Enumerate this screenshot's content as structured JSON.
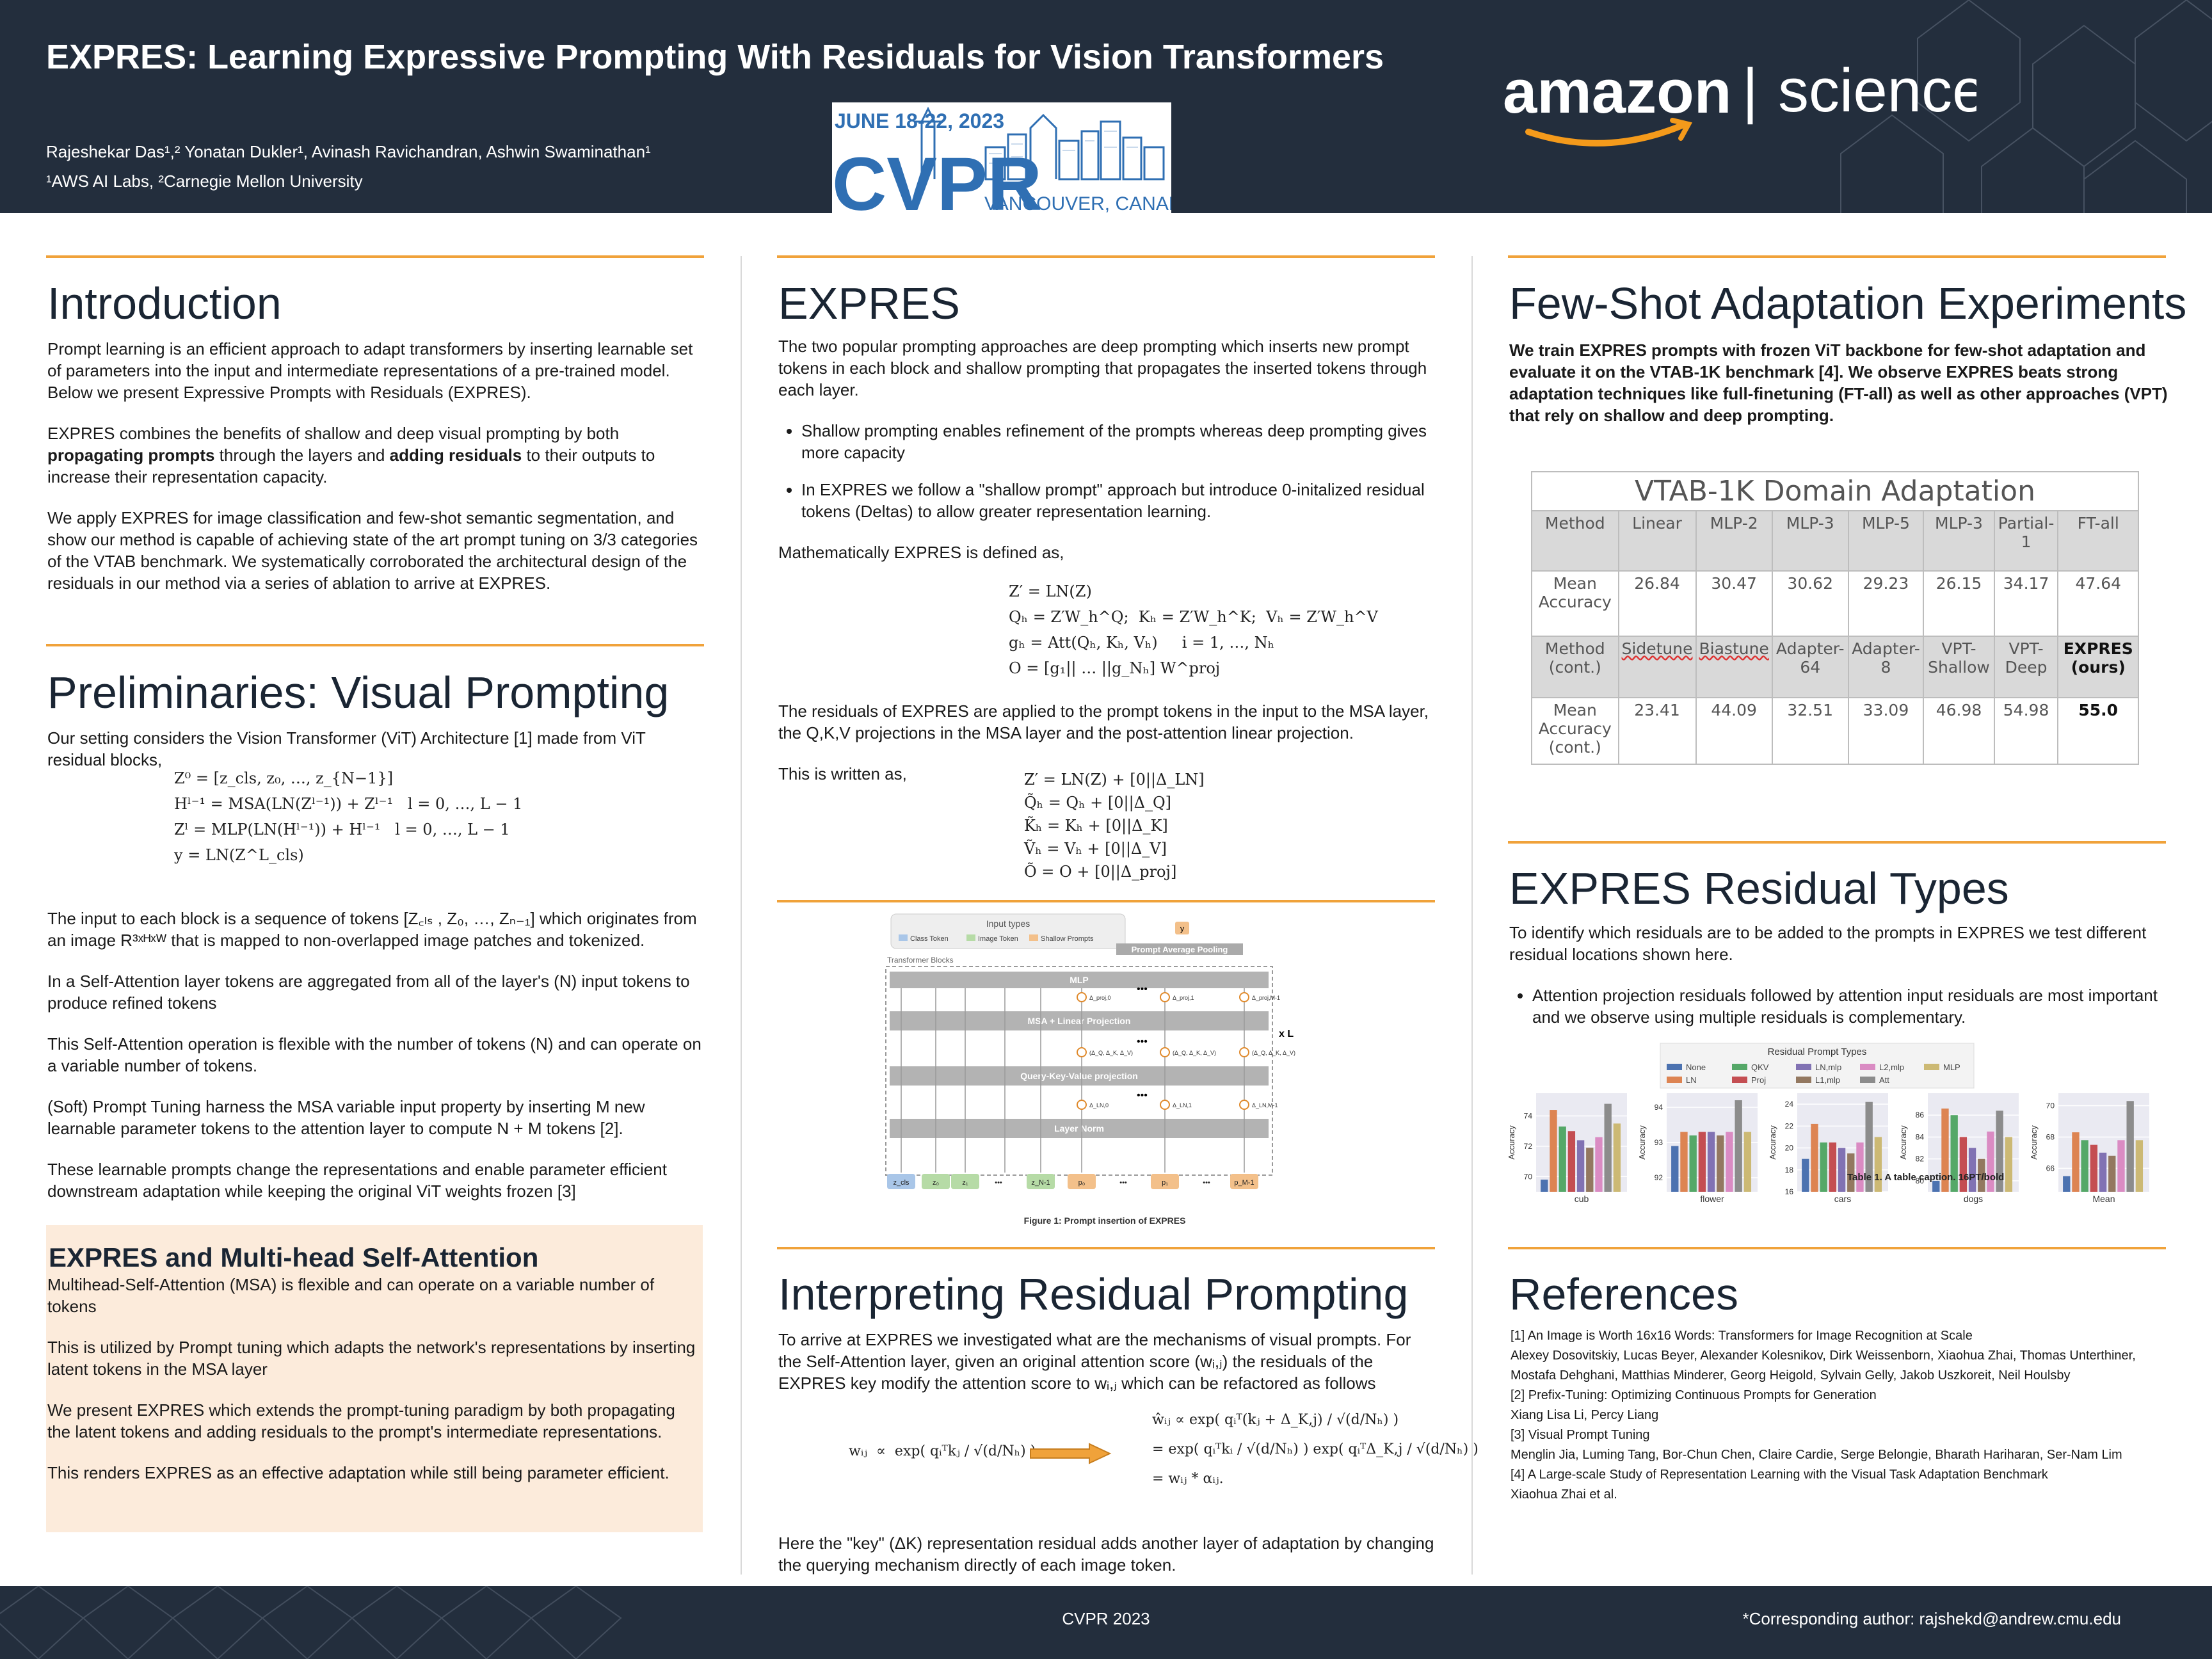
{
  "header": {
    "title": "EXPRES: Learning Expressive Prompting With Residuals for Vision Transformers",
    "authors": "Rajeshekar Das¹,² Yonatan Dukler¹, Avinash Ravichandran, Ashwin Swaminathan¹",
    "affiliations": "¹AWS AI Labs, ²Carnegie Mellon University",
    "cvpr_logo": {
      "dates": "JUNE 18-22, 2023",
      "name": "CVPR",
      "location": "VANCOUVER, CANADA",
      "color": "#2f6fb3"
    },
    "amazon_logo": {
      "brand": "amazon",
      "divider": "|",
      "product": "science",
      "smile_color": "#f49a1b"
    }
  },
  "colors": {
    "header_bg": "#232e3d",
    "accent_orange": "#f0a23a",
    "box_bg": "#fcebdb"
  },
  "intro": {
    "heading": "Introduction",
    "p1": "Prompt learning is an efficient approach to adapt transformers by inserting learnable set of parameters into the input and intermediate representations of a pre-trained model. Below we present Expressive Prompts with Residuals (EXPRES).",
    "p2_a": "EXPRES combines the benefits of shallow and deep visual prompting by both ",
    "p2_b": "propagating prompts",
    "p2_c": " through the layers and ",
    "p2_d": "adding residuals",
    "p2_e": " to their outputs to increase their representation capacity.",
    "p3": "We apply EXPRES for image classification and few-shot semantic segmentation, and show our method is capable of achieving state of the art prompt tuning on 3/3 categories of the VTAB benchmark. We systematically corroborated the architectural design of the residuals in our method via a series of ablation to arrive at EXPRES."
  },
  "prelim": {
    "heading": "Preliminaries: Visual Prompting",
    "p1": "Our setting considers the Vision Transformer (ViT) Architecture [1] made from ViT residual blocks,",
    "equations": [
      "Z⁰ = [z_cls, z₀, …, z_{N−1}]",
      "Hˡ⁻¹ = MSA(LN(Zˡ⁻¹)) + Zˡ⁻¹   l = 0, …, L − 1",
      "Zˡ = MLP(LN(Hˡ⁻¹)) + Hˡ⁻¹   l = 0, …, L − 1",
      "y = LN(Z^L_cls)"
    ],
    "p2": "The input to each block is a sequence of tokens [Z꜀ₗₛ , Z₀, …, Zₙ₋₁] which originates from an image R³ˣᴴˣᵂ that is mapped to non-overlapped image patches and tokenized.",
    "p3": "In a Self-Attention layer tokens are aggregated from all of the layer's (N) input tokens to produce refined tokens",
    "p4": "This Self-Attention operation is flexible with the number of tokens (N) and can operate on a variable number of tokens.",
    "p5": "(Soft) Prompt Tuning harness the MSA variable input property by inserting M new learnable parameter tokens to the attention layer to compute N + M tokens [2].",
    "p6": "These learnable prompts change the representations and enable parameter efficient downstream adaptation while keeping the original ViT weights frozen [3]"
  },
  "msa_box": {
    "heading": "EXPRES and Multi-head Self-Attention",
    "p1": "Multihead-Self-Attention (MSA) is flexible and can operate on a variable number of tokens",
    "p2": "This is utilized by Prompt tuning which adapts the network's representations by inserting latent tokens in the MSA layer",
    "p3": "We present EXPRES which extends the prompt-tuning paradigm by both propagating the latent tokens and adding residuals to the prompt's intermediate representations.",
    "p4": "This renders EXPRES as an effective adaptation while still being parameter efficient."
  },
  "expres": {
    "heading": "EXPRES",
    "p1": "The two popular prompting approaches are deep prompting which inserts new prompt tokens in each block and shallow prompting that propagates the inserted tokens through each layer.",
    "b1": "Shallow prompting enables refinement of the prompts whereas deep prompting gives more capacity",
    "b2": "In EXPRES we follow a \"shallow prompt\" approach but introduce 0-initalized residual tokens (Deltas) to allow greater representation learning.",
    "p2": "Mathematically EXPRES is defined as,",
    "eqs1": [
      "Z′ = LN(Z)",
      "Qₕ = Z′W_h^Q;  Kₕ = Z′W_h^K;  Vₕ = Z′W_h^V",
      "gₕ = Att(Qₕ, Kₕ, Vₕ)     i = 1, …, Nₕ",
      "O = [g₁|| … ||g_Nₕ] W^proj"
    ],
    "p3": "The residuals of EXPRES are applied to the prompt tokens in the input to the MSA layer, the Q,K,V projections in the MSA layer and the post-attention linear projection.",
    "p4": "This is written as,",
    "eqs2": [
      "Z′ = LN(Z) + [0||Δ_LN]",
      "Q̃ₕ = Qₕ + [0||Δ_Q]",
      "K̃ₕ = Kₕ + [0||Δ_K]",
      "Ṽₕ = Vₕ + [0||Δ_V]",
      "Õ = O + [0||Δ_proj]"
    ]
  },
  "figure1": {
    "legend_title": "Input types",
    "legend": [
      "Class Token",
      "Image Token",
      "Shallow Prompts"
    ],
    "legend_colors": [
      "#a9c6e8",
      "#b6dba6",
      "#f3c08a"
    ],
    "transformer_blocks": "Transformer Blocks",
    "output": "y",
    "pooling": "Prompt Average Pooling",
    "mlp": "MLP",
    "msa": "MSA + Linear Projection",
    "qkv": "Query-Key-Value projection",
    "layernorm": "Layer Norm",
    "repeat": "x L",
    "dots": "•••",
    "tokens": [
      "z_cls",
      "z₀",
      "z₁",
      "•••",
      "z_N-1",
      "p₀",
      "•••",
      "p₁",
      "•••",
      "p_M-1"
    ],
    "delta_mlp": [
      "Δ_proj,0",
      "Δ_proj,1",
      "Δ_proj,M-1"
    ],
    "delta_qkv": [
      "(Δ_Q, Δ_K, Δ_V)",
      "(Δ_Q, Δ_K, Δ_V)",
      "(Δ_Q, Δ_K, Δ_V)"
    ],
    "delta_ln": [
      "Δ_LN,0",
      "Δ_LN,1",
      "Δ_LN,M-1"
    ],
    "caption": "Figure 1: Prompt insertion of EXPRES"
  },
  "interpreting": {
    "heading": "Interpreting Residual Prompting",
    "p1": "To arrive at EXPRES we investigated what are the mechanisms of visual prompts. For the Self-Attention layer, given an original attention score (wᵢ,ⱼ) the residuals of the EXPRES key modify the attention score to wᵢ,ⱼ which can be refactored as follows",
    "eq_left": "wᵢⱼ  ∝  exp( qᵢᵀkⱼ / √(d/Nₕ) )",
    "eq_right": [
      "ŵᵢⱼ ∝ exp( qᵢᵀ(kⱼ + Δ_K,j) / √(d/Nₕ) )",
      "= exp( qᵢᵀkᵢ / √(d/Nₕ) ) exp( qᵢᵀΔ_K,j / √(d/Nₕ) )",
      "= wᵢⱼ * αᵢⱼ."
    ],
    "p2": "Here the \"key\" (ΔK) representation residual adds another layer of adaptation by changing the querying mechanism directly of each image token."
  },
  "fewshot": {
    "heading": "Few-Shot Adaptation Experiments",
    "p1": "We train EXPRES prompts with frozen ViT backbone for few-shot adaptation and evaluate it on the VTAB-1K benchmark [4]. We observe EXPRES beats strong adaptation techniques like full-finetuning (FT-all) as well as other approaches (VPT) that rely on shallow and deep prompting.",
    "table": {
      "caption": "VTAB-1K Domain Adaptation",
      "header1": [
        "Method",
        "Linear",
        "MLP-2",
        "MLP-3",
        "MLP-5",
        "MLP-3",
        "Partial-1",
        "FT-all"
      ],
      "row1": [
        "Mean Accuracy",
        "26.84",
        "30.47",
        "30.62",
        "29.23",
        "26.15",
        "34.17",
        "47.64"
      ],
      "header2": [
        "Method (cont.)",
        "Sidetune",
        "Biastune",
        "Adapter-64",
        "Adapter-8",
        "VPT-Shallow",
        "VPT-Deep",
        "EXPRES (ours)"
      ],
      "row2": [
        "Mean Accuracy (cont.)",
        "23.41",
        "44.09",
        "32.51",
        "33.09",
        "46.98",
        "54.98",
        "55.0"
      ]
    }
  },
  "residual": {
    "heading": "EXPRES Residual Types",
    "p1": "To identify which residuals are to be added to the prompts in EXPRES we test different residual locations shown here.",
    "b1": "Attention projection residuals followed by attention input residuals are most important and we observe using multiple residuals is complementary.",
    "overlay_caption": "Table 1. A table caption. 16PT/bold"
  },
  "chart_data": {
    "type": "bar",
    "title": "Residual Prompt Types",
    "legend": [
      "None",
      "LN",
      "QKV",
      "Proj",
      "LN,mlp",
      "L1,mlp",
      "L2,mlp",
      "Att",
      "MLP"
    ],
    "colors": [
      "#4c72b0",
      "#dd8452",
      "#55a868",
      "#c44e52",
      "#8172b3",
      "#937860",
      "#da8bc3",
      "#8c8c8c",
      "#ccb974"
    ],
    "ylabel": "Accuracy",
    "panels": [
      {
        "name": "cub",
        "ylim": [
          69,
          75.5
        ],
        "yticks": [
          70,
          72,
          74
        ],
        "values": [
          69.8,
          74.4,
          73.3,
          73.0,
          72.4,
          71.9,
          72.6,
          74.8,
          73.5
        ]
      },
      {
        "name": "flower",
        "ylim": [
          91.6,
          94.4
        ],
        "yticks": [
          92,
          93,
          94
        ],
        "values": [
          92.9,
          93.3,
          93.2,
          93.3,
          93.3,
          93.2,
          93.3,
          94.2,
          93.3
        ]
      },
      {
        "name": "cars",
        "ylim": [
          16,
          25
        ],
        "yticks": [
          16,
          18,
          20,
          22,
          24
        ],
        "values": [
          19.0,
          22.2,
          20.5,
          20.5,
          20.0,
          19.5,
          20.5,
          24.2,
          21.0
        ]
      },
      {
        "name": "dogs",
        "ylim": [
          79,
          88
        ],
        "yticks": [
          80,
          82,
          84,
          86
        ],
        "values": [
          80.0,
          86.6,
          86.0,
          84.0,
          83.0,
          82.0,
          84.5,
          86.4,
          84.0
        ]
      },
      {
        "name": "Mean",
        "ylim": [
          64.5,
          70.8
        ],
        "yticks": [
          66,
          68,
          70
        ],
        "values": [
          65.5,
          68.3,
          67.8,
          67.5,
          67.0,
          66.8,
          67.8,
          70.3,
          67.8
        ]
      }
    ]
  },
  "references": {
    "heading": "References",
    "lines": [
      "[1] An Image is Worth 16x16 Words: Transformers for Image Recognition at Scale",
      "Alexey Dosovitskiy, Lucas Beyer, Alexander Kolesnikov, Dirk Weissenborn, Xiaohua Zhai, Thomas Unterthiner, Mostafa Dehghani, Matthias Minderer, Georg Heigold, Sylvain Gelly, Jakob Uszkoreit, Neil Houlsby",
      "[2] Prefix-Tuning: Optimizing Continuous Prompts for Generation",
      "Xiang Lisa Li, Percy Liang",
      "[3] Visual Prompt Tuning",
      "Menglin Jia, Luming Tang, Bor-Chun Chen, Claire Cardie, Serge Belongie, Bharath Hariharan, Ser-Nam Lim",
      "[4] A Large-scale Study of Representation Learning with the Visual Task Adaptation Benchmark",
      "Xiaohua Zhai et al."
    ]
  },
  "footer": {
    "center": "CVPR 2023",
    "right": "*Corresponding author: rajshekd@andrew.cmu.edu"
  }
}
